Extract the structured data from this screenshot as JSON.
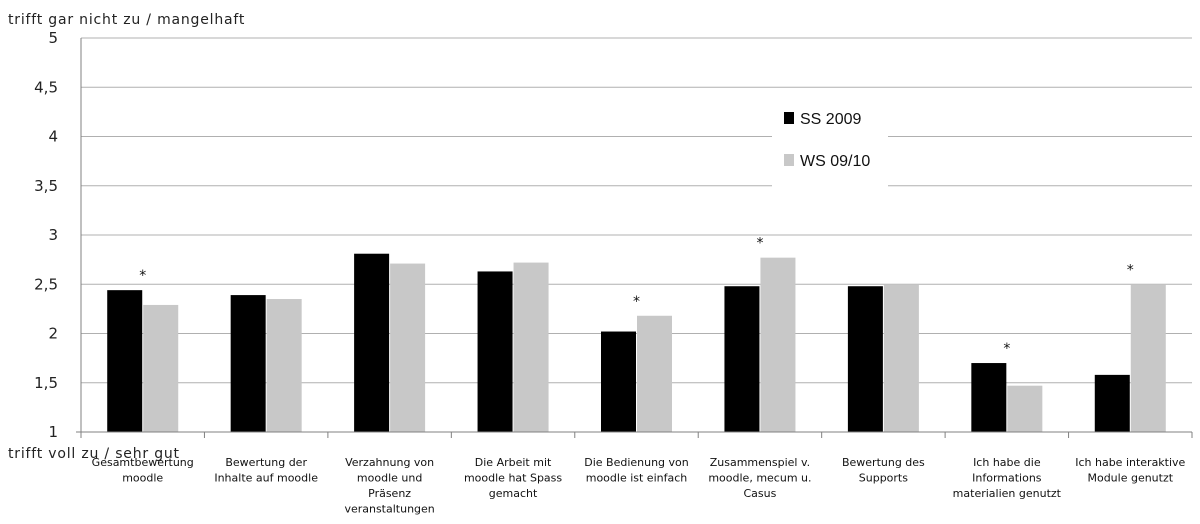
{
  "chart_data": {
    "type": "bar",
    "y_axis_top_label": "trifft gar nicht zu / mangelhaft",
    "y_axis_bottom_label": "trifft voll zu / sehr gut",
    "ylim": [
      1,
      5
    ],
    "y_ticks": [
      "1",
      "1,5",
      "2",
      "2,5",
      "3",
      "3,5",
      "4",
      "4,5",
      "5"
    ],
    "grid": true,
    "legend_position": "upper-right",
    "categories": [
      [
        "Gesamtbewertung",
        "moodle"
      ],
      [
        "Bewertung der",
        "Inhalte auf moodle"
      ],
      [
        "Verzahnung von",
        "moodle und",
        "Präsenz",
        "veranstaltungen"
      ],
      [
        "Die Arbeit mit",
        "moodle hat Spass",
        "gemacht"
      ],
      [
        "Die Bedienung von",
        "moodle ist einfach"
      ],
      [
        "Zusammenspiel v.",
        "moodle, mecum u.",
        "Casus"
      ],
      [
        "Bewertung des",
        "Supports"
      ],
      [
        "Ich habe die",
        "Informations",
        "materialien genutzt"
      ],
      [
        "Ich habe interaktive",
        "Module genutzt"
      ]
    ],
    "significance_marker": "*",
    "significant": [
      true,
      false,
      false,
      false,
      true,
      true,
      false,
      true,
      true
    ],
    "series": [
      {
        "name": "SS 2009",
        "color": "#000000",
        "values": [
          2.44,
          2.39,
          2.81,
          2.63,
          2.02,
          2.48,
          2.48,
          1.7,
          1.58
        ]
      },
      {
        "name": "WS 09/10",
        "color": "#c8c8c8",
        "values": [
          2.29,
          2.35,
          2.71,
          2.72,
          2.18,
          2.77,
          2.5,
          1.47,
          2.5
        ]
      }
    ]
  }
}
